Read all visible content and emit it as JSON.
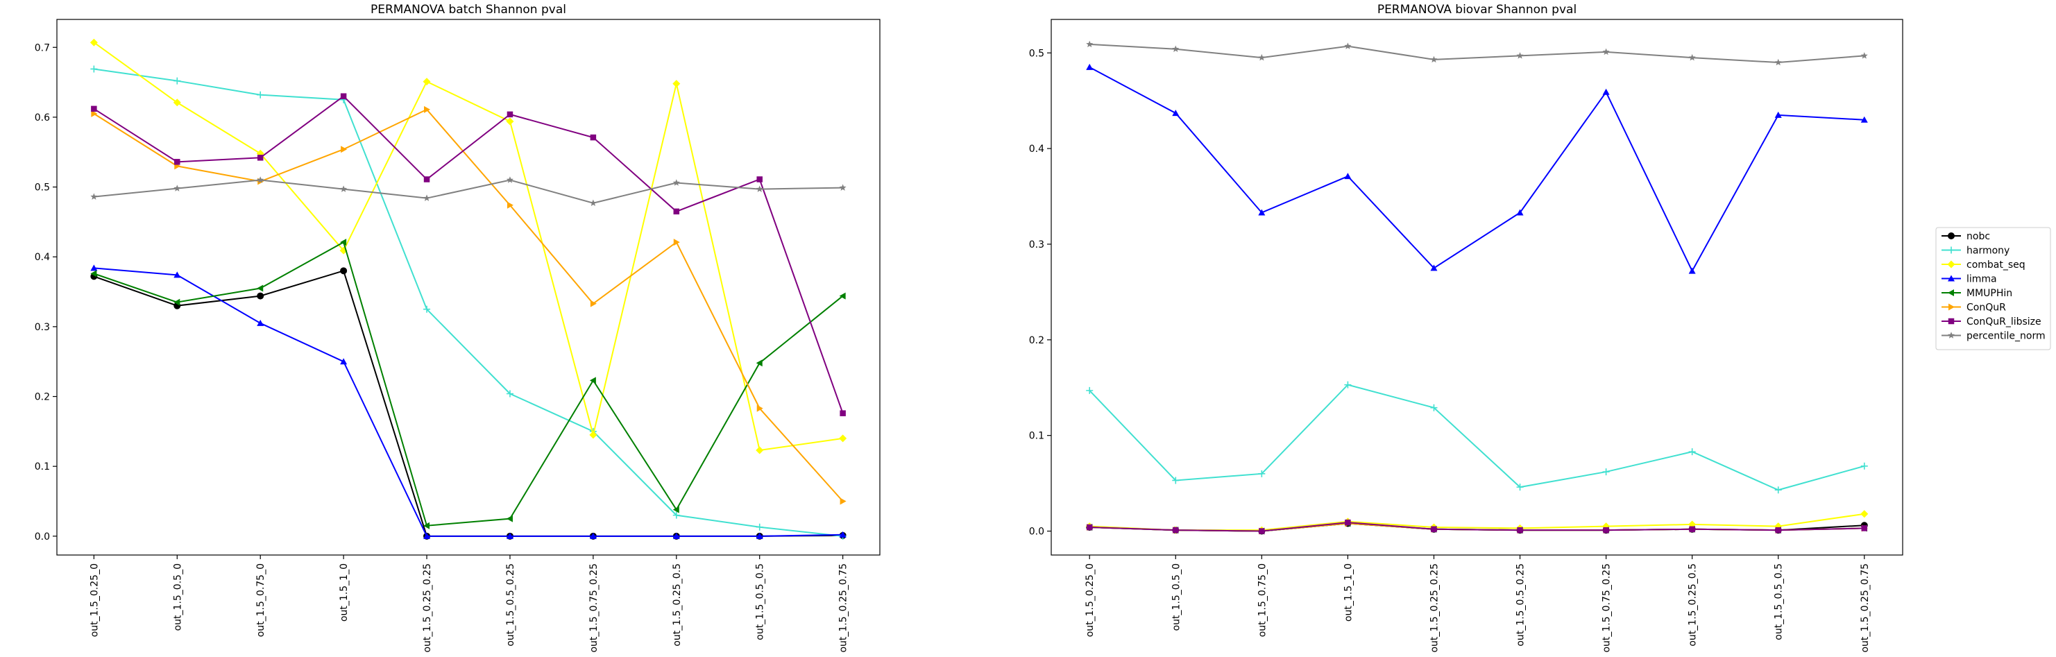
{
  "legend": {
    "location": "right-center"
  },
  "series_styles": [
    {
      "name": "nobc",
      "color": "#000000",
      "marker": "circle"
    },
    {
      "name": "harmony",
      "color": "#40E0D0",
      "marker": "plus"
    },
    {
      "name": "combat_seq",
      "color": "#FFFF00",
      "marker": "diamond"
    },
    {
      "name": "limma",
      "color": "#0000FF",
      "marker": "triangle-up"
    },
    {
      "name": "MMUPHin",
      "color": "#008000",
      "marker": "triangle-left"
    },
    {
      "name": "ConQuR",
      "color": "#FFA500",
      "marker": "triangle-right"
    },
    {
      "name": "ConQuR_libsize",
      "color": "#800080",
      "marker": "square"
    },
    {
      "name": "percentile_norm",
      "color": "#808080",
      "marker": "star"
    }
  ],
  "chart_data": [
    {
      "type": "line",
      "title": "PERMANOVA batch Shannon pval",
      "xlabel": "",
      "ylabel": "",
      "categories": [
        "out_1.5_0.25_0",
        "out_1.5_0.5_0",
        "out_1.5_0.75_0",
        "out_1.5_1_0",
        "out_1.5_0.25_0.25",
        "out_1.5_0.5_0.25",
        "out_1.5_0.75_0.25",
        "out_1.5_0.25_0.5",
        "out_1.5_0.5_0.5",
        "out_1.5_0.25_0.75"
      ],
      "yticks": [
        "0.0",
        "0.1",
        "0.2",
        "0.3",
        "0.4",
        "0.5",
        "0.6",
        "0.7"
      ],
      "ylim": [
        -0.027,
        0.74
      ],
      "grid": false,
      "series": [
        {
          "name": "nobc",
          "values": [
            0.372,
            0.33,
            0.344,
            0.38,
            0.0,
            0.0,
            0.0,
            0.0,
            0.0,
            0.001
          ]
        },
        {
          "name": "harmony",
          "values": [
            0.669,
            0.652,
            0.632,
            0.625,
            0.325,
            0.204,
            0.15,
            0.03,
            0.013,
            0.0
          ]
        },
        {
          "name": "combat_seq",
          "values": [
            0.707,
            0.621,
            0.548,
            0.409,
            0.651,
            0.594,
            0.145,
            0.648,
            0.123,
            0.14
          ]
        },
        {
          "name": "limma",
          "values": [
            0.384,
            0.374,
            0.305,
            0.25,
            0.0,
            0.0,
            0.0,
            0.0,
            0.0,
            0.002
          ]
        },
        {
          "name": "MMUPHin",
          "values": [
            0.376,
            0.335,
            0.355,
            0.421,
            0.015,
            0.025,
            0.223,
            0.038,
            0.248,
            0.344
          ]
        },
        {
          "name": "ConQuR",
          "values": [
            0.605,
            0.53,
            0.508,
            0.554,
            0.611,
            0.474,
            0.333,
            0.421,
            0.183,
            0.05
          ]
        },
        {
          "name": "ConQuR_libsize",
          "values": [
            0.612,
            0.536,
            0.542,
            0.63,
            0.511,
            0.604,
            0.571,
            0.465,
            0.511,
            0.176
          ]
        },
        {
          "name": "percentile_norm",
          "values": [
            0.486,
            0.498,
            0.51,
            0.497,
            0.484,
            0.51,
            0.477,
            0.506,
            0.497,
            0.499
          ]
        }
      ]
    },
    {
      "type": "line",
      "title": "PERMANOVA biovar Shannon pval",
      "xlabel": "",
      "ylabel": "",
      "categories": [
        "out_1.5_0.25_0",
        "out_1.5_0.5_0",
        "out_1.5_0.75_0",
        "out_1.5_1_0",
        "out_1.5_0.25_0.25",
        "out_1.5_0.5_0.25",
        "out_1.5_0.75_0.25",
        "out_1.5_0.25_0.5",
        "out_1.5_0.5_0.5",
        "out_1.5_0.25_0.75"
      ],
      "yticks": [
        "0.0",
        "0.1",
        "0.2",
        "0.3",
        "0.4",
        "0.5"
      ],
      "ylim": [
        -0.025,
        0.535
      ],
      "grid": false,
      "series": [
        {
          "name": "nobc",
          "values": [
            0.004,
            0.001,
            0.0,
            0.008,
            0.002,
            0.001,
            0.001,
            0.002,
            0.001,
            0.006
          ]
        },
        {
          "name": "harmony",
          "values": [
            0.147,
            0.053,
            0.06,
            0.153,
            0.129,
            0.046,
            0.062,
            0.083,
            0.043,
            0.068
          ]
        },
        {
          "name": "combat_seq",
          "values": [
            0.005,
            0.001,
            0.001,
            0.01,
            0.004,
            0.003,
            0.005,
            0.007,
            0.005,
            0.018
          ]
        },
        {
          "name": "limma",
          "values": [
            0.485,
            0.437,
            0.333,
            0.371,
            0.275,
            0.333,
            0.459,
            0.272,
            0.435,
            0.43
          ]
        },
        {
          "name": "MMUPHin",
          "values": [
            0.004,
            0.001,
            0.0,
            0.008,
            0.002,
            0.001,
            0.001,
            0.002,
            0.001,
            0.003
          ]
        },
        {
          "name": "ConQuR",
          "values": [
            0.004,
            0.001,
            0.0,
            0.008,
            0.002,
            0.001,
            0.001,
            0.002,
            0.001,
            0.003
          ]
        },
        {
          "name": "ConQuR_libsize",
          "values": [
            0.004,
            0.001,
            0.0,
            0.009,
            0.002,
            0.001,
            0.001,
            0.002,
            0.001,
            0.003
          ]
        },
        {
          "name": "percentile_norm",
          "values": [
            0.509,
            0.504,
            0.495,
            0.507,
            0.493,
            0.497,
            0.501,
            0.495,
            0.49,
            0.497
          ]
        }
      ]
    }
  ]
}
